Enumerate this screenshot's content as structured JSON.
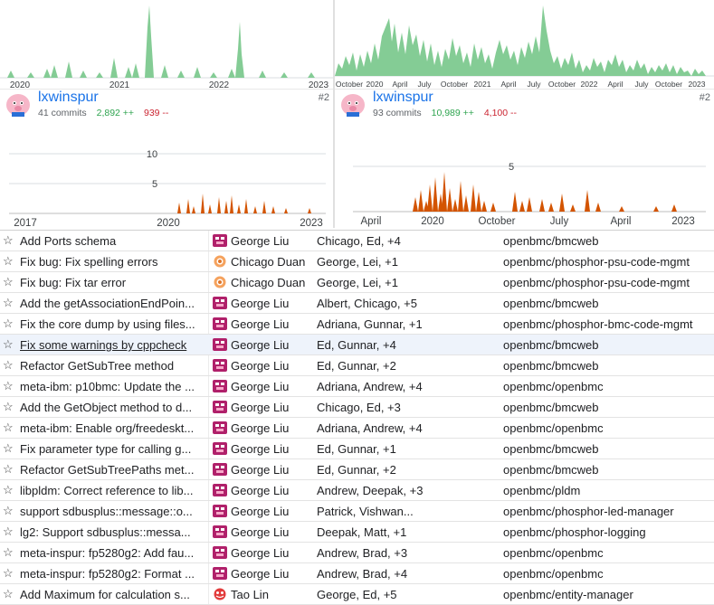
{
  "charts": {
    "left": {
      "top_axis_labels": [
        "2020",
        "2021",
        "2022",
        "2023"
      ],
      "bottom_axis_labels": [
        "2017",
        "2020",
        "2023"
      ],
      "bottom_y_labels": [
        "10",
        "5"
      ]
    },
    "right": {
      "top_axis_labels": [
        "October",
        "2020",
        "April",
        "July",
        "October",
        "2021",
        "April",
        "July",
        "October",
        "2022",
        "April",
        "July",
        "October",
        "2023"
      ],
      "bottom_axis_labels": [
        "April",
        "2020",
        "October",
        "July",
        "April",
        "2023"
      ],
      "bottom_y_labels": [
        "5"
      ]
    },
    "colors": {
      "area": "#84cc95",
      "bars": "#d35400",
      "link": "#1a73e8",
      "additions": "#2ea44f",
      "deletions": "#cb2431"
    }
  },
  "contributors": [
    {
      "name": "lxwinspur",
      "commits": "41 commits",
      "additions": "2,892 ++",
      "deletions": "939 --",
      "rank": "#2"
    },
    {
      "name": "lxwinspur",
      "commits": "93 commits",
      "additions": "10,989 ++",
      "deletions": "4,100 --",
      "rank": "#2"
    }
  ],
  "commits": [
    {
      "subject": "Add Ports schema",
      "author": "George Liu",
      "icon": "avatar-magenta-icon",
      "reviewers": "Chicago, Ed, +4",
      "repo": "openbmc/bmcweb"
    },
    {
      "subject": "Fix bug: Fix spelling errors",
      "author": "Chicago Duan",
      "icon": "avatar-orange-icon",
      "reviewers": "George, Lei, +1",
      "repo": "openbmc/phosphor-psu-code-mgmt"
    },
    {
      "subject": "Fix bug: Fix tar error",
      "author": "Chicago Duan",
      "icon": "avatar-orange-icon",
      "reviewers": "George, Lei, +1",
      "repo": "openbmc/phosphor-psu-code-mgmt"
    },
    {
      "subject": "Add the getAssociationEndPoin...",
      "author": "George Liu",
      "icon": "avatar-magenta-icon",
      "reviewers": "Albert, Chicago, +5",
      "repo": "openbmc/bmcweb"
    },
    {
      "subject": "Fix the core dump by using files...",
      "author": "George Liu",
      "icon": "avatar-magenta-icon",
      "reviewers": "Adriana, Gunnar, +1",
      "repo": "openbmc/phosphor-bmc-code-mgmt"
    },
    {
      "subject": "Fix some warnings by cppcheck",
      "author": "George Liu",
      "icon": "avatar-magenta-icon",
      "reviewers": "Ed, Gunnar, +4",
      "repo": "openbmc/bmcweb"
    },
    {
      "subject": "Refactor GetSubTree method",
      "author": "George Liu",
      "icon": "avatar-magenta-icon",
      "reviewers": "Ed, Gunnar, +2",
      "repo": "openbmc/bmcweb"
    },
    {
      "subject": "meta-ibm: p10bmc: Update the ...",
      "author": "George Liu",
      "icon": "avatar-magenta-icon",
      "reviewers": "Adriana, Andrew, +4",
      "repo": "openbmc/openbmc"
    },
    {
      "subject": "Add the GetObject method to d...",
      "author": "George Liu",
      "icon": "avatar-magenta-icon",
      "reviewers": "Chicago, Ed, +3",
      "repo": "openbmc/bmcweb"
    },
    {
      "subject": "meta-ibm: Enable org/freedeskt...",
      "author": "George Liu",
      "icon": "avatar-magenta-icon",
      "reviewers": "Adriana, Andrew, +4",
      "repo": "openbmc/openbmc"
    },
    {
      "subject": "Fix parameter type for calling g...",
      "author": "George Liu",
      "icon": "avatar-magenta-icon",
      "reviewers": "Ed, Gunnar, +1",
      "repo": "openbmc/bmcweb"
    },
    {
      "subject": "Refactor GetSubTreePaths met...",
      "author": "George Liu",
      "icon": "avatar-magenta-icon",
      "reviewers": "Ed, Gunnar, +2",
      "repo": "openbmc/bmcweb"
    },
    {
      "subject": "libpldm: Correct reference to lib...",
      "author": "George Liu",
      "icon": "avatar-magenta-icon",
      "reviewers": "Andrew, Deepak, +3",
      "repo": "openbmc/pldm"
    },
    {
      "subject": "support sdbusplus::message::o...",
      "author": "George Liu",
      "icon": "avatar-magenta-icon",
      "reviewers": "Patrick, Vishwan...",
      "repo": "openbmc/phosphor-led-manager"
    },
    {
      "subject": "lg2: Support sdbusplus::messa...",
      "author": "George Liu",
      "icon": "avatar-magenta-icon",
      "reviewers": "Deepak, Matt, +1",
      "repo": "openbmc/phosphor-logging"
    },
    {
      "subject": "meta-inspur: fp5280g2: Add fau...",
      "author": "George Liu",
      "icon": "avatar-magenta-icon",
      "reviewers": "Andrew, Brad, +3",
      "repo": "openbmc/openbmc"
    },
    {
      "subject": "meta-inspur: fp5280g2: Format ...",
      "author": "George Liu",
      "icon": "avatar-magenta-icon",
      "reviewers": "Andrew, Brad, +4",
      "repo": "openbmc/openbmc"
    },
    {
      "subject": "Add Maximum for calculation s...",
      "author": "Tao Lin",
      "icon": "avatar-red-icon",
      "reviewers": "George, Ed, +5",
      "repo": "openbmc/entity-manager"
    }
  ]
}
